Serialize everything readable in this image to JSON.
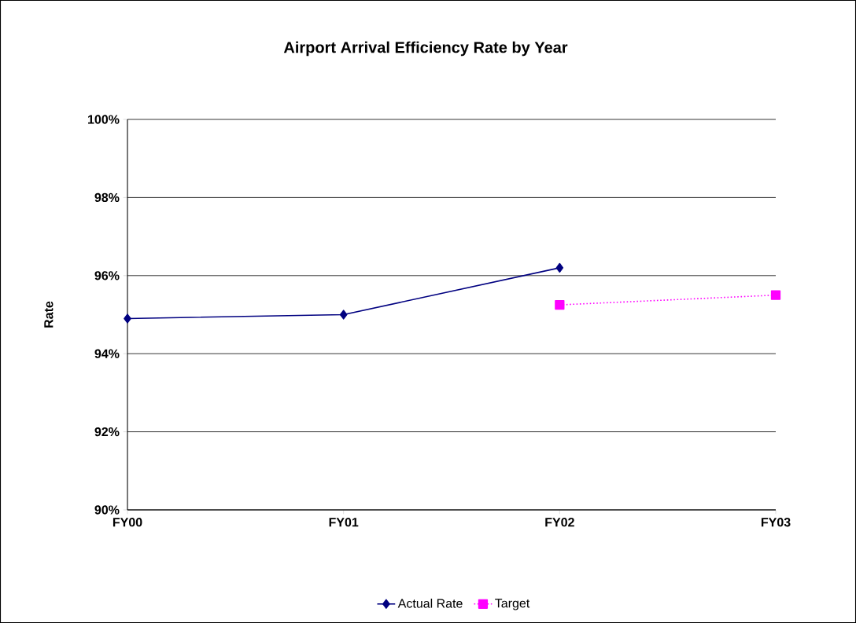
{
  "chart_data": {
    "type": "line",
    "title": "Airport Arrival Efficiency Rate by Year",
    "ylabel": "Rate",
    "categories": [
      "FY00",
      "FY01",
      "FY02",
      "FY03"
    ],
    "series": [
      {
        "name": "Actual Rate",
        "color": "#000080",
        "marker": "diamond",
        "line_style": "solid",
        "values": [
          94.9,
          95.0,
          96.2,
          null
        ]
      },
      {
        "name": "Target",
        "color": "#ff00ff",
        "marker": "square",
        "line_style": "dotted",
        "values": [
          null,
          null,
          95.25,
          95.5
        ]
      }
    ],
    "ylim": [
      90,
      100
    ],
    "yticks": [
      {
        "value": 90,
        "label": "90%"
      },
      {
        "value": 92,
        "label": "92%"
      },
      {
        "value": 94,
        "label": "94%"
      },
      {
        "value": 96,
        "label": "96%"
      },
      {
        "value": 98,
        "label": "98%"
      },
      {
        "value": 100,
        "label": "100%"
      }
    ],
    "grid": "y",
    "legend": "bottom"
  }
}
